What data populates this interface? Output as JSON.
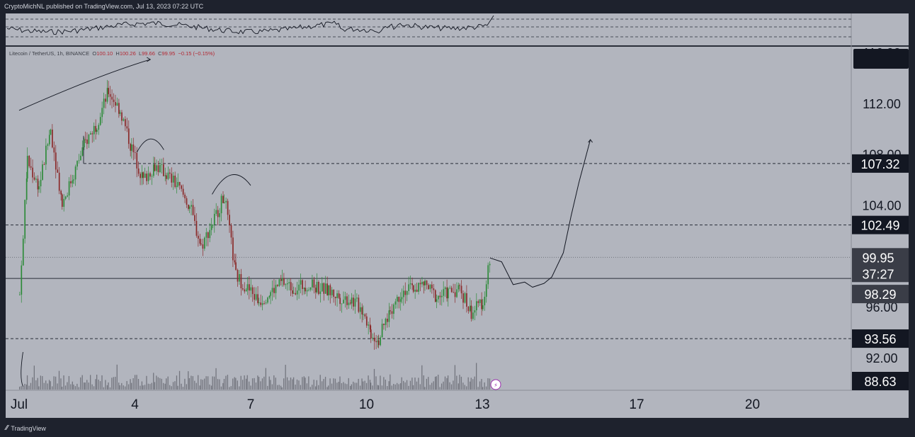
{
  "header": {
    "published_text": "CryptoMichNL published on TradingView.com, Jul 13, 2023 07:22 UTC"
  },
  "footer": {
    "brand": "TradingView"
  },
  "legend": {
    "symbol": "Litecoin / TetherUS, 1h, BINANCE",
    "open_label": "O",
    "open": "100.10",
    "high_label": "H",
    "high": "100.26",
    "low_label": "L",
    "low": "99.66",
    "close_label": "C",
    "close": "99.95",
    "change": "−0.15 (−0.15%)"
  },
  "colors": {
    "background": "#b2b5be",
    "panel_border": "#131722",
    "up_candle": "#2e8b3a",
    "down_candle": "#8b2a2a",
    "label_dark": "#131722",
    "label_price": "#3a3d47"
  },
  "chart_data": {
    "type": "candlestick",
    "symbol": "Litecoin / TetherUS",
    "timeframe": "1h",
    "exchange": "BINANCE",
    "x_ticks": [
      "Jul",
      "4",
      "7",
      "10",
      "13",
      "17",
      "20"
    ],
    "y_ticks": [
      "116.00",
      "112.00",
      "108.00",
      "104.00",
      "96.00",
      "92.00"
    ],
    "ylim": [
      89.5,
      116.5
    ],
    "current_price": "99.95",
    "countdown": "37:27",
    "levels": [
      {
        "price": 107.32,
        "label": "107.32",
        "style": "dashed"
      },
      {
        "price": 102.49,
        "label": "102.49",
        "style": "dashed"
      },
      {
        "price": 98.29,
        "label": "98.29",
        "style": "solid"
      },
      {
        "price": 93.56,
        "label": "93.56",
        "style": "dashed"
      }
    ],
    "volume_label": "88.63",
    "price_path": [
      [
        1,
        97.0
      ],
      [
        1.2,
        107.5
      ],
      [
        1.5,
        105.5
      ],
      [
        1.8,
        110.0
      ],
      [
        2.1,
        104.2
      ],
      [
        2.4,
        106.5
      ],
      [
        2.7,
        109.0
      ],
      [
        3.0,
        110.5
      ],
      [
        3.3,
        113.0
      ],
      [
        3.6,
        111.5
      ],
      [
        3.9,
        108.5
      ],
      [
        4.2,
        106.0
      ],
      [
        4.5,
        107.2
      ],
      [
        4.8,
        106.5
      ],
      [
        5.1,
        105.5
      ],
      [
        5.4,
        104.0
      ],
      [
        5.7,
        100.8
      ],
      [
        6.0,
        102.7
      ],
      [
        6.3,
        104.8
      ],
      [
        6.6,
        98.5
      ],
      [
        6.9,
        97.5
      ],
      [
        7.2,
        96.5
      ],
      [
        7.5,
        97.2
      ],
      [
        7.8,
        98.0
      ],
      [
        8.1,
        97.5
      ],
      [
        8.4,
        97.8
      ],
      [
        8.7,
        97.6
      ],
      [
        9.0,
        97.3
      ],
      [
        9.3,
        96.8
      ],
      [
        9.6,
        96.6
      ],
      [
        9.9,
        95.8
      ],
      [
        10.1,
        94.0
      ],
      [
        10.3,
        93.5
      ],
      [
        10.6,
        95.8
      ],
      [
        10.9,
        97.3
      ],
      [
        11.2,
        97.5
      ],
      [
        11.5,
        97.8
      ],
      [
        11.8,
        96.8
      ],
      [
        12.1,
        97.2
      ],
      [
        12.4,
        97.5
      ],
      [
        12.7,
        95.6
      ],
      [
        13.0,
        96.5
      ],
      [
        13.2,
        99.9
      ]
    ],
    "projection_path": [
      [
        13.2,
        99.9
      ],
      [
        13.5,
        99.6
      ],
      [
        13.8,
        97.8
      ],
      [
        14.1,
        98.0
      ],
      [
        14.3,
        97.6
      ],
      [
        14.6,
        97.9
      ],
      [
        14.8,
        98.4
      ],
      [
        15.1,
        100.3
      ],
      [
        15.3,
        103.2
      ],
      [
        15.5,
        105.8
      ],
      [
        15.8,
        109.2
      ]
    ]
  }
}
